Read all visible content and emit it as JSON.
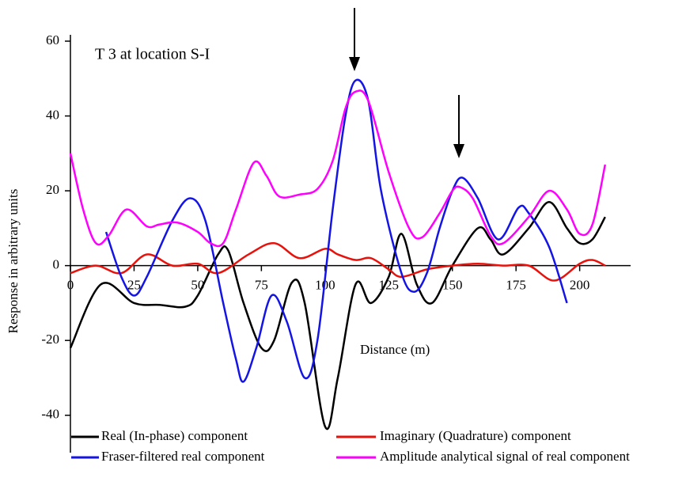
{
  "chart_data": {
    "type": "line",
    "annotation": "T 3 at location S-I",
    "x_label": "Distance (m)",
    "y_label": "Response in arbitrary units",
    "xlim": [
      0,
      220
    ],
    "xticks": [
      0,
      25,
      50,
      75,
      100,
      125,
      150,
      175,
      200
    ],
    "ylim": [
      -50,
      60
    ],
    "yticks": [
      -40,
      -20,
      0,
      20,
      40,
      60
    ],
    "series": [
      {
        "name": "Real (In-phase) component",
        "color": "#000000",
        "x": [
          0,
          12,
          25,
          35,
          45,
          50,
          58,
          62,
          68,
          75,
          80,
          87,
          92,
          100,
          105,
          112,
          118,
          125,
          130,
          136,
          142,
          150,
          160,
          165,
          170,
          180,
          188,
          195,
          200,
          205,
          210
        ],
        "values": [
          -22,
          -5,
          -10,
          -10.5,
          -11,
          -8,
          3,
          4,
          -10,
          -22,
          -20,
          -4.5,
          -10,
          -43,
          -30,
          -5,
          -10,
          -3,
          8.5,
          -5,
          -10,
          0,
          10,
          7,
          3,
          10,
          17,
          10,
          6,
          7,
          13
        ]
      },
      {
        "name": "Imaginary (Quadrature) component",
        "color": "#e8120c",
        "x": [
          0,
          10,
          20,
          30,
          40,
          50,
          58,
          70,
          80,
          90,
          100,
          105,
          112,
          118,
          125,
          130,
          140,
          150,
          160,
          170,
          180,
          190,
          200,
          205,
          210
        ],
        "values": [
          -2,
          0,
          -2,
          3,
          0,
          0.5,
          -2,
          3,
          6,
          2,
          4.5,
          3,
          1.5,
          2,
          -1,
          -3,
          -1,
          0,
          0.5,
          0,
          0,
          -4,
          0.5,
          1.5,
          0
        ]
      },
      {
        "name": "Fraser-filtered real component",
        "color": "#1414e6",
        "x": [
          14,
          20,
          25,
          30,
          40,
          47,
          53,
          60,
          65,
          68,
          73,
          79,
          85,
          92,
          97,
          103,
          108,
          112,
          117,
          122,
          130,
          135,
          140,
          145,
          150,
          154,
          160,
          168,
          176,
          180,
          188,
          195
        ],
        "values": [
          9,
          -3,
          -8,
          -3,
          12,
          18,
          12,
          -10,
          -25,
          -31,
          -22,
          -8,
          -15,
          -30,
          -20,
          15,
          40,
          49.5,
          44,
          20,
          -2,
          -7,
          -2,
          10,
          20,
          23.5,
          18,
          7,
          15.5,
          14,
          5,
          -10
        ]
      },
      {
        "name": "Amplitude analytical signal of real component",
        "color": "#ff00ff",
        "x": [
          0,
          5,
          10,
          15,
          22,
          30,
          35,
          42,
          50,
          55,
          60,
          65,
          72,
          77,
          82,
          90,
          97,
          103,
          108,
          112,
          117,
          125,
          133,
          138,
          145,
          150,
          153,
          158,
          165,
          170,
          180,
          188,
          195,
          200,
          205,
          210
        ],
        "values": [
          30,
          15,
          6,
          8,
          15,
          10.5,
          11,
          11.5,
          9,
          6,
          6,
          15,
          27.5,
          24,
          18.5,
          19,
          20.5,
          28,
          42,
          46.5,
          44,
          25,
          10,
          7.5,
          14,
          20,
          21,
          18,
          8,
          6,
          13,
          20,
          15,
          8.5,
          11,
          27
        ]
      }
    ]
  }
}
